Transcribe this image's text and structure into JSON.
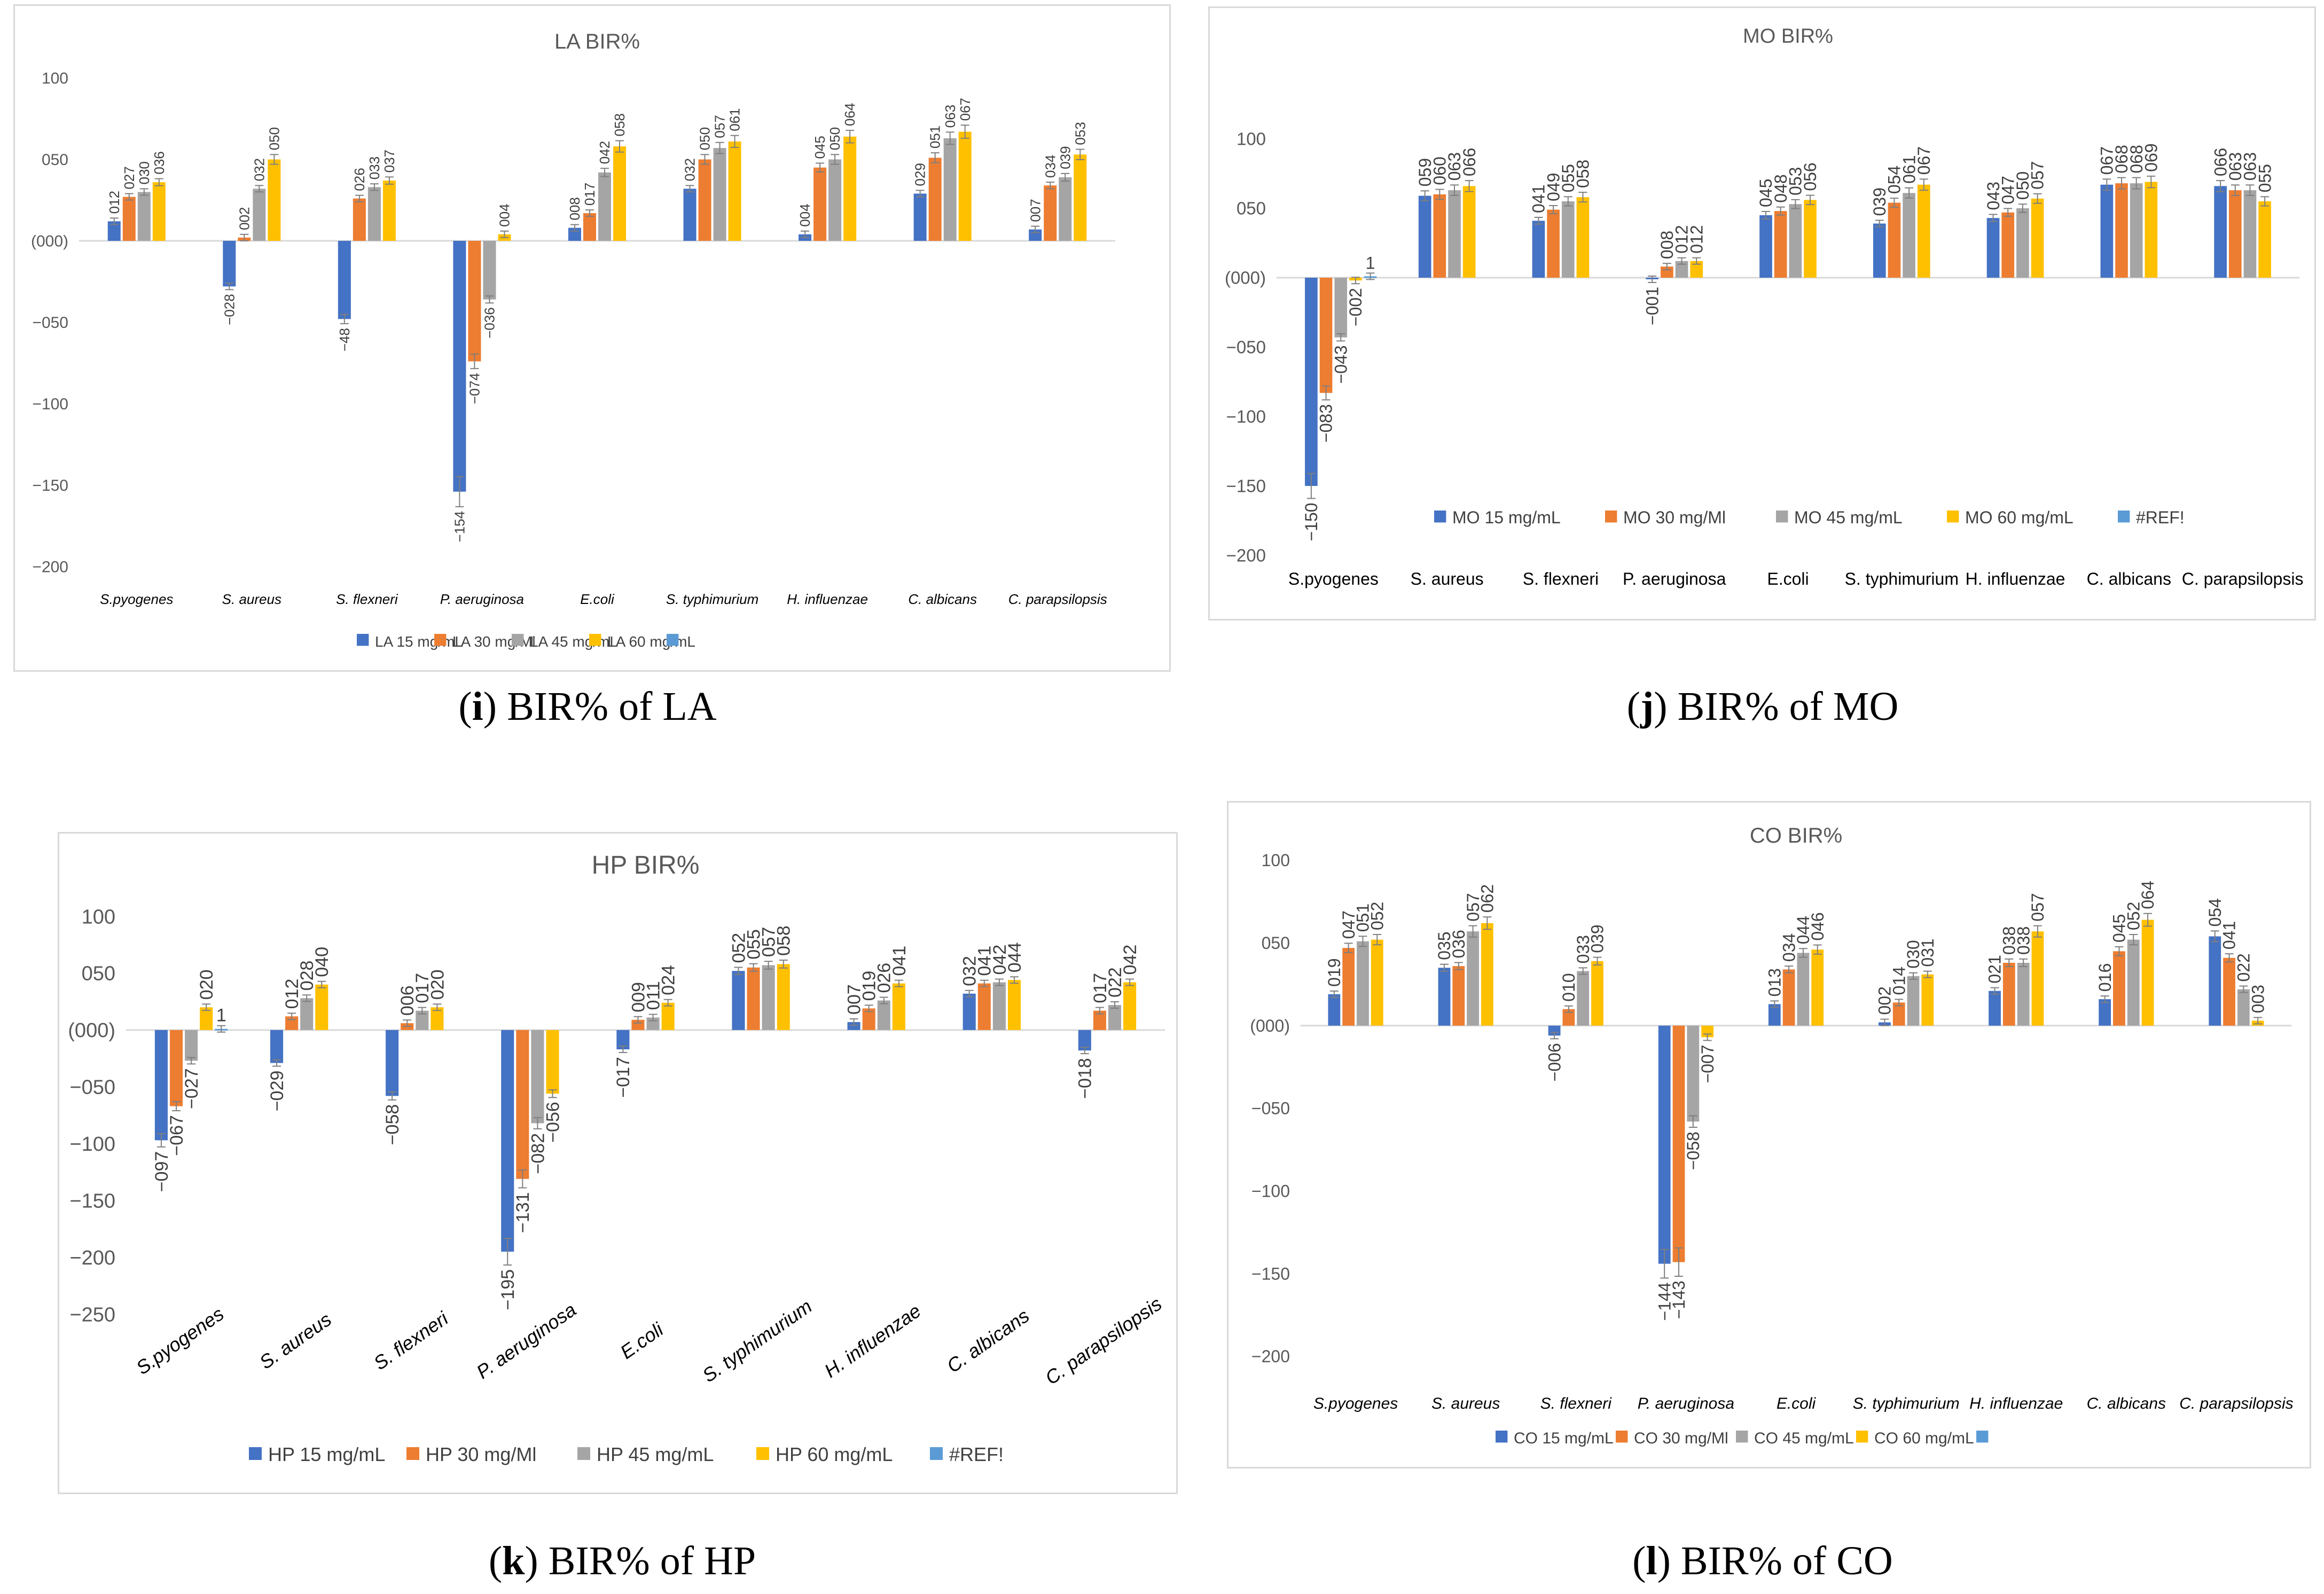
{
  "colors": {
    "s1": "#4472C4",
    "s2": "#ED7D31",
    "s3": "#A5A5A5",
    "s4": "#FFC000",
    "s5": "#5B9BD5"
  },
  "captions": [
    {
      "letter": "i",
      "text": " BIR% of LA"
    },
    {
      "letter": "j",
      "text": " BIR% of MO"
    },
    {
      "letter": "k",
      "text": " BIR% of HP"
    },
    {
      "letter": "l",
      "text": " BIR% of CO"
    }
  ],
  "chart_data": [
    {
      "type": "bar",
      "title": "LA BIR%",
      "ylim": [
        -200,
        100
      ],
      "yticks": [
        "100",
        "050",
        "(000)",
        "−050",
        "−100",
        "−150",
        "−200"
      ],
      "categories": [
        "S.pyogenes",
        "S. aureus",
        "S. flexneri",
        "P. aeruginosa",
        "E.coli",
        "S. typhimurium",
        "H. influenzae",
        "C. albicans",
        "C. parapsilopsis"
      ],
      "series": [
        {
          "name": "LA 15 mg/mL",
          "values": [
            12,
            -28,
            -48,
            -154,
            8,
            32,
            4,
            29,
            7
          ],
          "labels": [
            "012",
            "−028",
            "−48",
            "−154",
            "008",
            "032",
            "004",
            "029",
            "007"
          ]
        },
        {
          "name": "LA 30 mg/Ml",
          "values": [
            27,
            2,
            26,
            -74,
            17,
            50,
            45,
            51,
            34
          ],
          "labels": [
            "027",
            "002",
            "026",
            "−074",
            "017",
            "050",
            "045",
            "051",
            "034"
          ]
        },
        {
          "name": "LA 45 mg/mL",
          "values": [
            30,
            32,
            33,
            -36,
            42,
            57,
            50,
            63,
            39
          ],
          "labels": [
            "030",
            "032",
            "033",
            "−036",
            "042",
            "057",
            "050",
            "063",
            "039"
          ]
        },
        {
          "name": "LA 60 mg/mL",
          "values": [
            36,
            50,
            37,
            4,
            58,
            61,
            64,
            67,
            53
          ],
          "labels": [
            "036",
            "050",
            "037",
            "004",
            "058",
            "061",
            "064",
            "067",
            "053"
          ]
        },
        {
          "name": "",
          "values": [
            null,
            null,
            null,
            null,
            null,
            null,
            null,
            null,
            null
          ],
          "labels": [
            "",
            "",
            "",
            "",
            "",
            "",
            "",
            "",
            ""
          ]
        }
      ]
    },
    {
      "type": "bar",
      "title": "MO BIR%",
      "ylim": [
        -200,
        100
      ],
      "yticks": [
        "100",
        "050",
        "(000)",
        "−050",
        "−100",
        "−150",
        "−200"
      ],
      "categories": [
        "S.pyogenes",
        "S. aureus",
        "S. flexneri",
        "P. aeruginosa",
        "E.coli",
        "S. typhimurium",
        "H. influenzae",
        "C. albicans",
        "C. parapsilopsis"
      ],
      "series": [
        {
          "name": "MO 15 mg/mL",
          "values": [
            -150,
            59,
            41,
            -1,
            45,
            39,
            43,
            67,
            66
          ],
          "labels": [
            "−150",
            "059",
            "041",
            "−001",
            "045",
            "039",
            "043",
            "067",
            "066"
          ]
        },
        {
          "name": "MO 30 mg/Ml",
          "values": [
            -83,
            60,
            49,
            8,
            48,
            54,
            47,
            68,
            63
          ],
          "labels": [
            "−083",
            "060",
            "049",
            "008",
            "048",
            "054",
            "047",
            "068",
            "063"
          ]
        },
        {
          "name": "MO 45 mg/mL",
          "values": [
            -43,
            63,
            55,
            12,
            53,
            61,
            50,
            68,
            63
          ],
          "labels": [
            "−043",
            "063",
            "055",
            "012",
            "053",
            "061",
            "050",
            "068",
            "063"
          ]
        },
        {
          "name": "MO 60 mg/mL",
          "values": [
            -2,
            66,
            58,
            12,
            56,
            67,
            57,
            69,
            55
          ],
          "labels": [
            "−002",
            "066",
            "058",
            "012",
            "056",
            "067",
            "057",
            "069",
            "055"
          ]
        },
        {
          "name": "#REF!",
          "values": [
            1,
            null,
            null,
            null,
            null,
            null,
            null,
            null,
            null
          ],
          "labels": [
            "1",
            "",
            "",
            "",
            "",
            "",
            "",
            "",
            ""
          ]
        }
      ]
    },
    {
      "type": "bar",
      "title": "HP BIR%",
      "ylim": [
        -250,
        100
      ],
      "yticks": [
        "100",
        "050",
        "(000)",
        "−050",
        "−100",
        "−150",
        "−200",
        "−250"
      ],
      "categories": [
        "S.pyogenes",
        "S. aureus",
        "S. flexneri",
        "P. aeruginosa",
        "E.coli",
        "S. typhimurium",
        "H. influenzae",
        "C. albicans",
        "C. parapsilopsis"
      ],
      "series": [
        {
          "name": "HP 15 mg/mL",
          "values": [
            -97,
            -29,
            -58,
            -195,
            -17,
            52,
            7,
            32,
            -18
          ],
          "labels": [
            "−097",
            "−029",
            "−058",
            "−195",
            "−017",
            "052",
            "007",
            "032",
            "−018"
          ]
        },
        {
          "name": "HP 30 mg/Ml",
          "values": [
            -67,
            12,
            6,
            -131,
            9,
            55,
            19,
            41,
            17
          ],
          "labels": [
            "−067",
            "012",
            "006",
            "−131",
            "009",
            "055",
            "019",
            "041",
            "017"
          ]
        },
        {
          "name": "HP 45 mg/mL",
          "values": [
            -27,
            28,
            17,
            -82,
            11,
            57,
            26,
            42,
            22
          ],
          "labels": [
            "−027",
            "028",
            "017",
            "−082",
            "011",
            "057",
            "026",
            "042",
            "022"
          ]
        },
        {
          "name": "HP 60 mg/mL",
          "values": [
            20,
            40,
            20,
            -56,
            24,
            58,
            41,
            44,
            42
          ],
          "labels": [
            "020",
            "040",
            "020",
            "−056",
            "024",
            "058",
            "041",
            "044",
            "042"
          ]
        },
        {
          "name": "#REF!",
          "values": [
            1,
            null,
            null,
            null,
            null,
            null,
            null,
            null,
            null
          ],
          "labels": [
            "1",
            "",
            "",
            "",
            "",
            "",
            "",
            "",
            ""
          ]
        }
      ]
    },
    {
      "type": "bar",
      "title": "CO BIR%",
      "ylim": [
        -200,
        100
      ],
      "yticks": [
        "100",
        "050",
        "(000)",
        "−050",
        "−100",
        "−150",
        "−200"
      ],
      "categories": [
        "S.pyogenes",
        "S. aureus",
        "S. flexneri",
        "P. aeruginosa",
        "E.coli",
        "S. typhimurium",
        "H. influenzae",
        "C. albicans",
        "C. parapsilopsis"
      ],
      "series": [
        {
          "name": "CO 15 mg/mL",
          "values": [
            19,
            35,
            -6,
            -144,
            13,
            2,
            21,
            16,
            54
          ],
          "labels": [
            "019",
            "035",
            "−006",
            "−144",
            "013",
            "002",
            "021",
            "016",
            "054"
          ]
        },
        {
          "name": "CO 30 mg/Ml",
          "values": [
            47,
            36,
            10,
            -143,
            34,
            14,
            38,
            45,
            41
          ],
          "labels": [
            "047",
            "036",
            "010",
            "−143",
            "034",
            "014",
            "038",
            "045",
            "041"
          ]
        },
        {
          "name": "CO 45 mg/mL",
          "values": [
            51,
            57,
            33,
            -58,
            44,
            30,
            38,
            52,
            22
          ],
          "labels": [
            "051",
            "057",
            "033",
            "−058",
            "044",
            "030",
            "038",
            "052",
            "022"
          ]
        },
        {
          "name": "CO 60 mg/mL",
          "values": [
            52,
            62,
            39,
            -7,
            46,
            31,
            57,
            64,
            3
          ],
          "labels": [
            "052",
            "062",
            "039",
            "−007",
            "046",
            "031",
            "057",
            "064",
            "003"
          ]
        },
        {
          "name": "",
          "values": [
            null,
            null,
            null,
            null,
            null,
            null,
            null,
            null,
            null
          ],
          "labels": [
            "",
            "",
            "",
            "",
            "",
            "",
            "",
            "",
            ""
          ]
        }
      ]
    }
  ]
}
